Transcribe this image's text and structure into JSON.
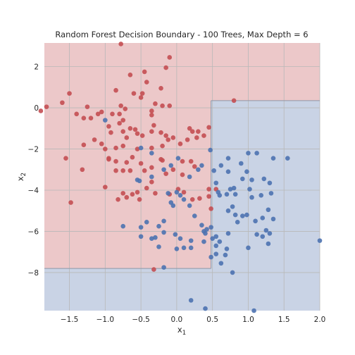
{
  "chart_data": {
    "type": "scatter",
    "title": "Random Forest Decision Boundary - 100 Trees, Max Depth = 6",
    "xlabel_base": "x",
    "xlabel_sub": "1",
    "ylabel_base": "x",
    "ylabel_sub": "2",
    "xlim": [
      -1.85,
      2.0
    ],
    "ylim": [
      -9.85,
      3.15
    ],
    "xticks": [
      -1.5,
      -1.0,
      -0.5,
      0.0,
      0.5,
      1.0,
      1.5,
      2.0
    ],
    "xtick_labels": [
      "−1.5",
      "−1.0",
      "−0.5",
      "0.0",
      "0.5",
      "1.0",
      "1.5",
      "2.0"
    ],
    "yticks": [
      2,
      0,
      -2,
      -4,
      -6,
      -8
    ],
    "ytick_labels": [
      "2",
      "0",
      "−2",
      "−4",
      "−6",
      "−8"
    ],
    "grid": true,
    "colors": {
      "class0_region": "#ecc8c9",
      "class1_region": "#c9d3e5",
      "class0_point": "#c44e52",
      "class1_point": "#4c72b0",
      "grid": "#b8b8b8"
    },
    "decision_regions": [
      {
        "class": 1,
        "x": [
          0.48,
          2.0
        ],
        "y": [
          -9.85,
          0.35
        ]
      },
      {
        "class": 1,
        "x": [
          -1.85,
          0.48
        ],
        "y": [
          -9.85,
          -7.8
        ]
      }
    ],
    "series": [
      {
        "class": 0,
        "points": [
          [
            -0.78,
            3.1
          ],
          [
            -0.1,
            2.45
          ],
          [
            -0.15,
            1.95
          ],
          [
            -0.45,
            1.75
          ],
          [
            -0.65,
            1.6
          ],
          [
            -1.82,
            0.05
          ],
          [
            -1.9,
            -0.15
          ],
          [
            -1.6,
            0.25
          ],
          [
            -1.5,
            0.7
          ],
          [
            -1.4,
            -0.3
          ],
          [
            -1.3,
            -0.5
          ],
          [
            -1.25,
            0.05
          ],
          [
            -1.2,
            -0.5
          ],
          [
            -1.1,
            -0.3
          ],
          [
            -1.05,
            -0.2
          ],
          [
            -0.85,
            0.85
          ],
          [
            -0.6,
            0.7
          ],
          [
            -0.48,
            0.7
          ],
          [
            -0.42,
            1.25
          ],
          [
            -0.22,
            0.95
          ],
          [
            -0.3,
            0.2
          ],
          [
            -0.5,
            0.5
          ],
          [
            -0.2,
            0.1
          ],
          [
            -0.1,
            0.1
          ],
          [
            -0.35,
            -0.35
          ],
          [
            -0.35,
            -0.15
          ],
          [
            -0.78,
            0.1
          ],
          [
            -0.72,
            -0.05
          ],
          [
            -0.8,
            -0.3
          ],
          [
            -0.75,
            -0.6
          ],
          [
            -0.9,
            -0.3
          ],
          [
            -0.95,
            -0.9
          ],
          [
            -0.92,
            -1.2
          ],
          [
            -0.8,
            -0.75
          ],
          [
            -0.75,
            -1.15
          ],
          [
            -0.65,
            -1.0
          ],
          [
            -0.7,
            -1.45
          ],
          [
            -0.58,
            -1.05
          ],
          [
            -0.55,
            -1.25
          ],
          [
            -0.48,
            -1.35
          ],
          [
            -0.32,
            -0.85
          ],
          [
            -0.35,
            -1.15
          ],
          [
            -0.22,
            -1.2
          ],
          [
            -0.15,
            -1.35
          ],
          [
            -0.12,
            -1.55
          ],
          [
            -0.05,
            -1.45
          ],
          [
            0.18,
            -1.0
          ],
          [
            0.22,
            -1.15
          ],
          [
            0.3,
            -1.15
          ],
          [
            0.28,
            -1.45
          ],
          [
            0.38,
            -1.35
          ],
          [
            0.45,
            -0.95
          ],
          [
            0.15,
            -1.55
          ],
          [
            0.05,
            -1.75
          ],
          [
            -0.2,
            -1.85
          ],
          [
            -0.35,
            -1.95
          ],
          [
            -0.55,
            -2.0
          ],
          [
            -0.75,
            -1.85
          ],
          [
            -0.85,
            -1.95
          ],
          [
            -1.05,
            -1.75
          ],
          [
            -1.15,
            -1.55
          ],
          [
            -1.0,
            -2.0
          ],
          [
            -1.3,
            -1.8
          ],
          [
            -0.95,
            -2.45
          ],
          [
            -0.85,
            -2.6
          ],
          [
            -0.62,
            -2.4
          ],
          [
            -0.7,
            -2.65
          ],
          [
            -0.5,
            -2.7
          ],
          [
            -0.35,
            -2.9
          ],
          [
            -0.45,
            -3.05
          ],
          [
            -0.22,
            -2.5
          ],
          [
            -0.2,
            -2.55
          ],
          [
            -0.15,
            -3.2
          ],
          [
            0.08,
            -2.6
          ],
          [
            0.2,
            -2.6
          ],
          [
            0.25,
            -2.85
          ],
          [
            0.08,
            -3.25
          ],
          [
            -0.05,
            -3.0
          ],
          [
            -0.65,
            -3.05
          ],
          [
            -0.75,
            -3.05
          ],
          [
            -0.85,
            -3.05
          ],
          [
            -0.95,
            -2.5
          ],
          [
            -1.0,
            -3.85
          ],
          [
            -1.32,
            -3.0
          ],
          [
            -1.55,
            -2.45
          ],
          [
            -0.35,
            -3.6
          ],
          [
            -0.42,
            -3.9
          ],
          [
            -0.3,
            -4.15
          ],
          [
            -0.55,
            -4.1
          ],
          [
            -0.75,
            -4.15
          ],
          [
            -0.7,
            -4.35
          ],
          [
            -0.82,
            -4.45
          ],
          [
            -0.52,
            -4.45
          ],
          [
            -0.62,
            -4.2
          ],
          [
            -0.1,
            -4.2
          ],
          [
            0.02,
            -3.95
          ],
          [
            0.1,
            -4.1
          ],
          [
            0.22,
            -4.45
          ],
          [
            0.32,
            -4.4
          ],
          [
            0.45,
            -3.95
          ],
          [
            0.55,
            -3.95
          ],
          [
            0.45,
            -4.3
          ],
          [
            0.48,
            -4.9
          ],
          [
            -1.48,
            -4.6
          ],
          [
            -0.32,
            -7.85
          ],
          [
            0.8,
            0.35
          ]
        ]
      },
      {
        "class": 1,
        "points": [
          [
            -1.0,
            -0.6
          ],
          [
            -0.5,
            -1.95
          ],
          [
            -0.35,
            -2.2
          ],
          [
            -0.08,
            -2.8
          ],
          [
            0.02,
            -2.45
          ],
          [
            0.35,
            -2.8
          ],
          [
            0.47,
            -2.05
          ],
          [
            0.52,
            -3.05
          ],
          [
            0.62,
            -2.8
          ],
          [
            0.72,
            -2.45
          ],
          [
            0.9,
            -2.7
          ],
          [
            1.0,
            -2.2
          ],
          [
            1.12,
            -2.2
          ],
          [
            1.35,
            -2.45
          ],
          [
            1.55,
            -2.45
          ],
          [
            0.98,
            -3.1
          ],
          [
            0.92,
            -3.45
          ],
          [
            0.55,
            -3.65
          ],
          [
            0.6,
            -4.25
          ],
          [
            0.7,
            -4.2
          ],
          [
            0.75,
            -3.95
          ],
          [
            0.8,
            -3.9
          ],
          [
            0.82,
            -4.2
          ],
          [
            1.05,
            -3.5
          ],
          [
            1.22,
            -3.45
          ],
          [
            1.3,
            -3.65
          ],
          [
            1.02,
            -3.95
          ],
          [
            1.05,
            -4.35
          ],
          [
            1.18,
            -4.25
          ],
          [
            1.32,
            -4.15
          ],
          [
            0.78,
            -4.8
          ],
          [
            0.82,
            -5.2
          ],
          [
            0.85,
            -5.55
          ],
          [
            0.72,
            -5.0
          ],
          [
            0.92,
            -5.25
          ],
          [
            0.98,
            -5.2
          ],
          [
            1.1,
            -5.5
          ],
          [
            1.2,
            -5.35
          ],
          [
            1.28,
            -4.95
          ],
          [
            1.35,
            -5.4
          ],
          [
            1.25,
            -5.95
          ],
          [
            1.12,
            -6.15
          ],
          [
            1.3,
            -6.1
          ],
          [
            1.2,
            -6.25
          ],
          [
            1.28,
            -6.6
          ],
          [
            1.0,
            -6.8
          ],
          [
            0.72,
            -6.1
          ],
          [
            0.55,
            -6.25
          ],
          [
            0.5,
            -6.35
          ],
          [
            0.4,
            -6.1
          ],
          [
            0.35,
            -5.7
          ],
          [
            0.42,
            -5.9
          ],
          [
            0.38,
            -6.0
          ],
          [
            0.25,
            -5.25
          ],
          [
            0.48,
            -5.8
          ],
          [
            0.18,
            -4.75
          ],
          [
            0.1,
            -4.45
          ],
          [
            0.05,
            -4.25
          ],
          [
            0.0,
            -4.1
          ],
          [
            -0.12,
            -4.15
          ],
          [
            -0.08,
            -4.6
          ],
          [
            -0.05,
            -4.75
          ],
          [
            -0.18,
            -5.5
          ],
          [
            -0.25,
            -5.75
          ],
          [
            -0.42,
            -5.55
          ],
          [
            -0.5,
            -5.8
          ],
          [
            -0.5,
            -6.25
          ],
          [
            -0.18,
            -6.05
          ],
          [
            -0.02,
            -6.15
          ],
          [
            0.05,
            -6.35
          ],
          [
            0.2,
            -6.45
          ],
          [
            0.38,
            -6.5
          ],
          [
            0.6,
            -6.5
          ],
          [
            0.55,
            -6.7
          ],
          [
            0.7,
            -6.85
          ],
          [
            0.68,
            -7.15
          ],
          [
            0.55,
            -7.1
          ],
          [
            0.48,
            -7.25
          ],
          [
            0.1,
            -6.8
          ],
          [
            0.2,
            -6.8
          ],
          [
            0.0,
            -6.85
          ],
          [
            -0.25,
            -6.75
          ],
          [
            -0.35,
            -6.35
          ],
          [
            -0.75,
            -5.75
          ],
          [
            -0.3,
            -6.3
          ],
          [
            -0.55,
            -3.5
          ],
          [
            -0.35,
            -3.35
          ],
          [
            -0.18,
            -3.0
          ],
          [
            0.3,
            -3.0
          ],
          [
            0.18,
            -3.35
          ],
          [
            0.58,
            -4.1
          ],
          [
            0.62,
            -7.55
          ],
          [
            0.78,
            -8.0
          ],
          [
            -0.18,
            -7.75
          ],
          [
            0.2,
            -9.35
          ],
          [
            0.4,
            -9.75
          ],
          [
            1.08,
            -9.85
          ],
          [
            2.0,
            -6.45
          ],
          [
            0.72,
            -3.1
          ],
          [
            -0.52,
            -3.55
          ]
        ]
      }
    ]
  }
}
